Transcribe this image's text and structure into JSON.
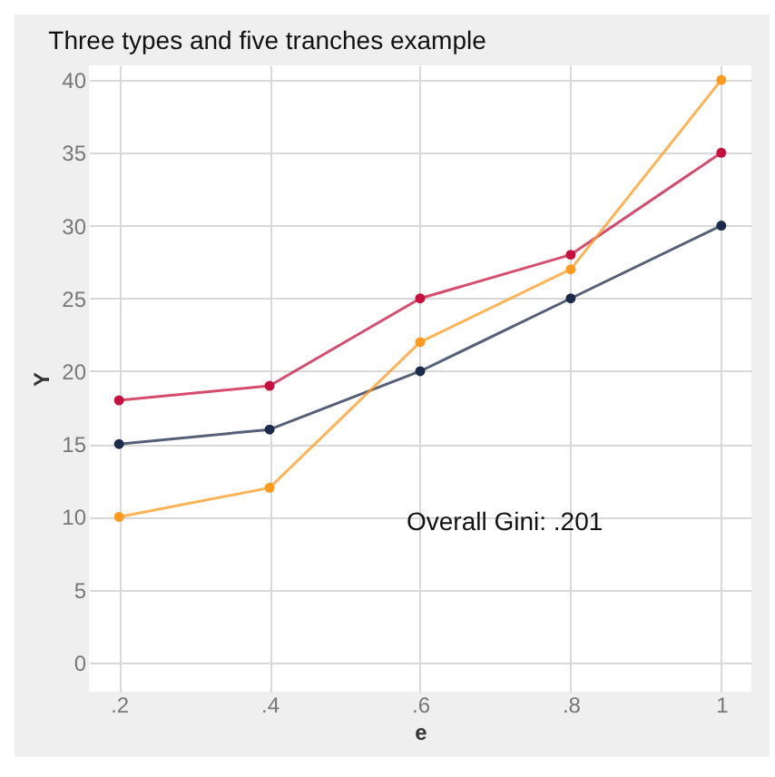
{
  "chart_data": {
    "type": "line",
    "title": "Three types and five tranches example",
    "xlabel": "e",
    "ylabel": "Y",
    "x": [
      0.2,
      0.4,
      0.6,
      0.8,
      1
    ],
    "series": [
      {
        "color": "#c8103e",
        "values": [
          18,
          19,
          25,
          28,
          35
        ]
      },
      {
        "color": "#1c2b4a",
        "values": [
          15,
          16,
          20,
          25,
          30
        ]
      },
      {
        "color": "#ff9a1f",
        "values": [
          10,
          12,
          22,
          27,
          40
        ]
      }
    ],
    "xlim": [
      0.16,
      1.04
    ],
    "xticks": [
      {
        "value": 0.2,
        "label": ".2"
      },
      {
        "value": 0.4,
        "label": ".4"
      },
      {
        "value": 0.6,
        "label": ".6"
      },
      {
        "value": 0.8,
        "label": ".8"
      },
      1
    ],
    "ylim": [
      -2,
      41
    ],
    "yticks": [
      0,
      5,
      10,
      15,
      20,
      25,
      30,
      35,
      40
    ],
    "grid": true,
    "legend": false,
    "marker": "circle",
    "line_style": "solid",
    "annotations": [
      "Overall Gini: .201"
    ]
  }
}
